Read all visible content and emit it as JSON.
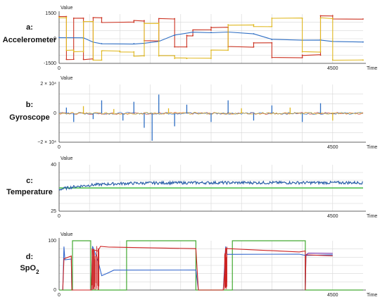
{
  "chart_data": [
    {
      "type": "line",
      "panel_label": "a:",
      "panel_title": "Accelerometer",
      "ylabel": "Value",
      "xlabel": "Time",
      "ylim": [
        -1500,
        1500
      ],
      "xlim": [
        0,
        5000
      ],
      "y_ticks": [
        "1500",
        "0",
        "-1500"
      ],
      "x_ticks": [
        "0",
        "4500"
      ],
      "x_tick_values": [
        0,
        4500
      ],
      "colors": {
        "red": "#cc3322",
        "blue": "#2f6fc4",
        "yellow": "#e0b820"
      },
      "series": [
        {
          "color_key": "red",
          "segments": [
            [
              0,
              1350
            ],
            [
              120,
              1350
            ],
            [
              120,
              -1250
            ],
            [
              240,
              -1250
            ],
            [
              240,
              1250
            ],
            [
              400,
              1250
            ],
            [
              400,
              -1250
            ],
            [
              560,
              -1250
            ],
            [
              560,
              1280
            ],
            [
              700,
              1280
            ],
            [
              700,
              1000
            ],
            [
              1230,
              1000
            ],
            [
              1230,
              1100
            ],
            [
              1400,
              1100
            ],
            [
              1400,
              -120
            ],
            [
              1640,
              -120
            ],
            [
              1640,
              1220
            ],
            [
              1900,
              1220
            ],
            [
              1900,
              -500
            ],
            [
              2100,
              -500
            ],
            [
              2100,
              200
            ],
            [
              2200,
              200
            ],
            [
              2200,
              520
            ],
            [
              2500,
              520
            ],
            [
              2500,
              700
            ],
            [
              2780,
              700
            ],
            [
              2780,
              -500
            ],
            [
              3200,
              -500
            ],
            [
              3200,
              -250
            ],
            [
              3500,
              -250
            ],
            [
              3500,
              -1150
            ],
            [
              4000,
              -1150
            ],
            [
              4000,
              -1000
            ],
            [
              4300,
              -1000
            ],
            [
              4300,
              1400
            ],
            [
              4500,
              1400
            ],
            [
              4500,
              1200
            ],
            [
              5000,
              1200
            ]
          ]
        },
        {
          "color_key": "blue",
          "segments": [
            [
              0,
              80
            ],
            [
              400,
              40
            ],
            [
              560,
              -200
            ],
            [
              700,
              -300
            ],
            [
              1230,
              -300
            ],
            [
              1400,
              -300
            ],
            [
              1640,
              -150
            ],
            [
              1900,
              200
            ],
            [
              2200,
              400
            ],
            [
              2500,
              380
            ],
            [
              2780,
              400
            ],
            [
              3200,
              300
            ],
            [
              3500,
              -50
            ],
            [
              4000,
              -100
            ],
            [
              4300,
              -60
            ],
            [
              4500,
              -150
            ],
            [
              5000,
              -200
            ]
          ]
        },
        {
          "color_key": "yellow",
          "segments": [
            [
              0,
              1300
            ],
            [
              120,
              1300
            ],
            [
              120,
              -700
            ],
            [
              240,
              -700
            ],
            [
              240,
              -800
            ],
            [
              400,
              -800
            ],
            [
              400,
              1050
            ],
            [
              560,
              1050
            ],
            [
              560,
              -1300
            ],
            [
              700,
              -1300
            ],
            [
              700,
              -750
            ],
            [
              1000,
              -750
            ],
            [
              1000,
              -800
            ],
            [
              1230,
              -800
            ],
            [
              1230,
              -1050
            ],
            [
              1400,
              -1050
            ],
            [
              1400,
              950
            ],
            [
              1640,
              950
            ],
            [
              1640,
              -1050
            ],
            [
              1900,
              -1050
            ],
            [
              1900,
              -1200
            ],
            [
              2100,
              -1200
            ],
            [
              2100,
              -1200
            ],
            [
              2500,
              -1200
            ],
            [
              2500,
              -700
            ],
            [
              2780,
              -700
            ],
            [
              2780,
              850
            ],
            [
              3200,
              850
            ],
            [
              3200,
              750
            ],
            [
              3500,
              750
            ],
            [
              3500,
              1250
            ],
            [
              4000,
              1250
            ],
            [
              4000,
              -800
            ],
            [
              4300,
              -800
            ],
            [
              4300,
              1250
            ],
            [
              4500,
              1250
            ],
            [
              4500,
              -1300
            ],
            [
              5000,
              -1300
            ]
          ]
        }
      ]
    },
    {
      "type": "line",
      "panel_label": "b:",
      "panel_title": "Gyroscope",
      "ylabel": "Value",
      "xlabel": "Time",
      "ylim": [
        -20000,
        20000
      ],
      "xlim": [
        0,
        5000
      ],
      "y_ticks": [
        "2 × 10⁴",
        "0",
        "−2 × 10⁴"
      ],
      "x_ticks": [
        "0",
        "4500"
      ],
      "x_tick_values": [
        0,
        4500
      ],
      "colors": {
        "blue": "#2f6fc4",
        "yellow": "#e0b820",
        "red": "#cc3322"
      },
      "spikes": [
        {
          "x": 120,
          "v": 4000,
          "c": "blue"
        },
        {
          "x": 240,
          "v": -6000,
          "c": "blue"
        },
        {
          "x": 400,
          "v": 5000,
          "c": "yellow"
        },
        {
          "x": 560,
          "v": -4000,
          "c": "blue"
        },
        {
          "x": 700,
          "v": 9000,
          "c": "blue"
        },
        {
          "x": 900,
          "v": 3000,
          "c": "yellow"
        },
        {
          "x": 1050,
          "v": -5000,
          "c": "blue"
        },
        {
          "x": 1230,
          "v": 8000,
          "c": "blue"
        },
        {
          "x": 1400,
          "v": -10000,
          "c": "blue"
        },
        {
          "x": 1530,
          "v": -19000,
          "c": "blue"
        },
        {
          "x": 1640,
          "v": 13000,
          "c": "blue"
        },
        {
          "x": 1800,
          "v": 3500,
          "c": "yellow"
        },
        {
          "x": 1900,
          "v": -9000,
          "c": "blue"
        },
        {
          "x": 2100,
          "v": 6000,
          "c": "blue"
        },
        {
          "x": 2500,
          "v": -6000,
          "c": "blue"
        },
        {
          "x": 2780,
          "v": 9000,
          "c": "blue"
        },
        {
          "x": 3000,
          "v": 3500,
          "c": "yellow"
        },
        {
          "x": 3200,
          "v": -5000,
          "c": "blue"
        },
        {
          "x": 3500,
          "v": 5500,
          "c": "blue"
        },
        {
          "x": 3800,
          "v": 4000,
          "c": "yellow"
        },
        {
          "x": 4000,
          "v": -6000,
          "c": "blue"
        },
        {
          "x": 4300,
          "v": 7000,
          "c": "blue"
        },
        {
          "x": 4500,
          "v": -5000,
          "c": "yellow"
        }
      ]
    },
    {
      "type": "line",
      "panel_label": "c:",
      "panel_title": "Temperature",
      "ylabel": "Value",
      "xlabel": "Time",
      "ylim": [
        25,
        40
      ],
      "xlim": [
        0,
        5000
      ],
      "y_ticks": [
        "40",
        "25"
      ],
      "x_ticks": [
        "0",
        "4500"
      ],
      "x_tick_values": [
        0,
        4500
      ],
      "colors": {
        "blue": "#2a5fa8",
        "green": "#44bb44"
      },
      "green_level": 32.5,
      "blue_start": 32.0,
      "blue_plateau": 34.2
    },
    {
      "type": "line",
      "panel_label": "d:",
      "panel_title": "SpO",
      "panel_title_sub": "2",
      "ylabel": "Value",
      "xlabel": "Time",
      "ylim": [
        0,
        100
      ],
      "xlim": [
        0,
        5000
      ],
      "y_ticks": [
        "100",
        "0"
      ],
      "x_ticks": [
        "0",
        "4500"
      ],
      "x_tick_values": [
        0,
        4500
      ],
      "colors": {
        "green": "#44aa33",
        "red": "#cc2222",
        "blue": "#3366cc",
        "purple": "#7733aa"
      },
      "green_pulses": [
        [
          220,
          520
        ],
        [
          1110,
          2250
        ],
        [
          2850,
          4050
        ]
      ],
      "red_trace": [
        [
          60,
          0
        ],
        [
          80,
          62
        ],
        [
          200,
          70
        ],
        [
          210,
          0
        ],
        [
          530,
          0
        ],
        [
          550,
          82
        ],
        [
          640,
          80
        ],
        [
          680,
          90
        ],
        [
          820,
          88
        ],
        [
          900,
          88
        ],
        [
          2250,
          85
        ],
        [
          2290,
          0
        ],
        [
          2700,
          0
        ],
        [
          2750,
          85
        ],
        [
          3950,
          78
        ],
        [
          4050,
          78
        ],
        [
          4050,
          0
        ],
        [
          4060,
          70
        ],
        [
          4500,
          68
        ]
      ],
      "blue_trace": [
        [
          60,
          0
        ],
        [
          80,
          88
        ],
        [
          95,
          62
        ],
        [
          200,
          64
        ],
        [
          210,
          0
        ],
        [
          530,
          0
        ],
        [
          550,
          90
        ],
        [
          640,
          60
        ],
        [
          700,
          30
        ],
        [
          820,
          35
        ],
        [
          900,
          40
        ],
        [
          2250,
          40
        ],
        [
          2290,
          0
        ],
        [
          2700,
          0
        ],
        [
          2740,
          90
        ],
        [
          2760,
          73
        ],
        [
          3950,
          72
        ],
        [
          4050,
          72
        ],
        [
          4050,
          0
        ],
        [
          4060,
          72
        ],
        [
          4500,
          70
        ]
      ],
      "purple_trace": [
        [
          4050,
          70
        ],
        [
          4100,
          74
        ],
        [
          4500,
          74
        ]
      ]
    }
  ]
}
